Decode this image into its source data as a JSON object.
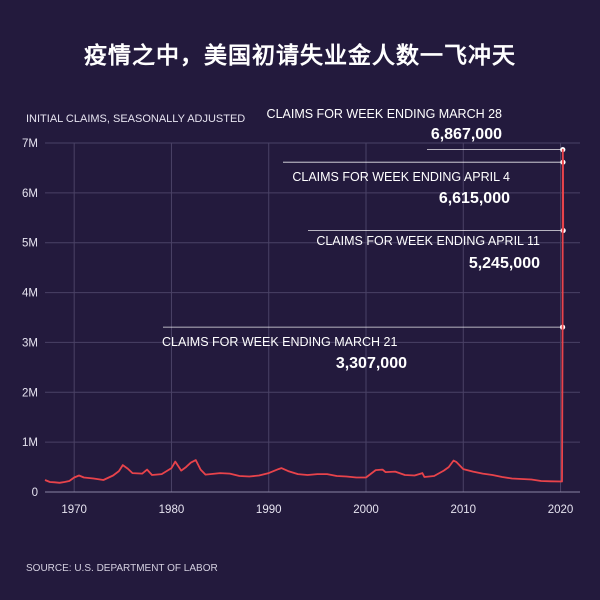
{
  "chart_data": {
    "type": "line",
    "title": "疫情之中，美国初请失业金人数一飞冲天",
    "ylabel": "INITIAL CLAIMS, SEASONALLY ADJUSTED",
    "source": "SOURCE:  U.S. DEPARTMENT OF LABOR",
    "xlim": [
      1967,
      2022
    ],
    "ylim": [
      0,
      7000000
    ],
    "x_ticks": [
      1970,
      1980,
      1990,
      2000,
      2010,
      2020
    ],
    "y_ticks": [
      {
        "value": 0,
        "label": "0"
      },
      {
        "value": 1000000,
        "label": "1M"
      },
      {
        "value": 2000000,
        "label": "2M"
      },
      {
        "value": 3000000,
        "label": "3M"
      },
      {
        "value": 4000000,
        "label": "4M"
      },
      {
        "value": 5000000,
        "label": "5M"
      },
      {
        "value": 6000000,
        "label": "6M"
      },
      {
        "value": 7000000,
        "label": "7M"
      }
    ],
    "grid": true,
    "series": [
      {
        "color": "#e8434b",
        "x": [
          1967,
          1967.5,
          1968,
          1968.5,
          1969,
          1969.5,
          1970,
          1970.5,
          1971,
          1972,
          1973,
          1974,
          1974.6,
          1975,
          1975.5,
          1976,
          1977,
          1977.5,
          1978,
          1979,
          1980,
          1980.4,
          1981,
          1981.5,
          1982,
          1982.5,
          1983,
          1983.5,
          1984,
          1985,
          1986,
          1987,
          1988,
          1989,
          1990,
          1991,
          1991.3,
          1992,
          1993,
          1994,
          1995,
          1996,
          1997,
          1998,
          1999,
          2000,
          2001,
          2001.7,
          2002,
          2003,
          2004,
          2005,
          2005.8,
          2006,
          2007,
          2008,
          2008.5,
          2009,
          2009.3,
          2010,
          2011,
          2012,
          2013,
          2014,
          2015,
          2016,
          2017,
          2018,
          2019,
          2020.15,
          2020.21,
          2020.23,
          2020.25,
          2020.27
        ],
        "y": [
          240000,
          200000,
          195000,
          185000,
          200000,
          220000,
          290000,
          330000,
          290000,
          270000,
          240000,
          330000,
          420000,
          540000,
          470000,
          380000,
          370000,
          450000,
          340000,
          360000,
          480000,
          610000,
          430000,
          500000,
          590000,
          640000,
          450000,
          350000,
          360000,
          380000,
          370000,
          320000,
          310000,
          330000,
          380000,
          460000,
          480000,
          420000,
          360000,
          340000,
          360000,
          360000,
          320000,
          310000,
          290000,
          290000,
          440000,
          450000,
          400000,
          410000,
          340000,
          330000,
          380000,
          300000,
          320000,
          430000,
          500000,
          630000,
          600000,
          460000,
          410000,
          370000,
          340000,
          300000,
          270000,
          260000,
          250000,
          220000,
          215000,
          210000,
          3307000,
          6867000,
          6615000,
          5245000
        ]
      }
    ],
    "annotations": [
      {
        "label": "CLAIMS FOR WEEK ENDING MARCH 28",
        "value": "6,867,000",
        "x": 2020.23,
        "y": 6867000
      },
      {
        "label": "CLAIMS FOR WEEK ENDING APRIL 4",
        "value": "6,615,000",
        "x": 2020.25,
        "y": 6615000
      },
      {
        "label": "CLAIMS FOR WEEK ENDING APRIL 11",
        "value": "5,245,000",
        "x": 2020.27,
        "y": 5245000
      },
      {
        "label": "CLAIMS FOR WEEK ENDING MARCH 21",
        "value": "3,307,000",
        "x": 2020.21,
        "y": 3307000
      }
    ]
  }
}
